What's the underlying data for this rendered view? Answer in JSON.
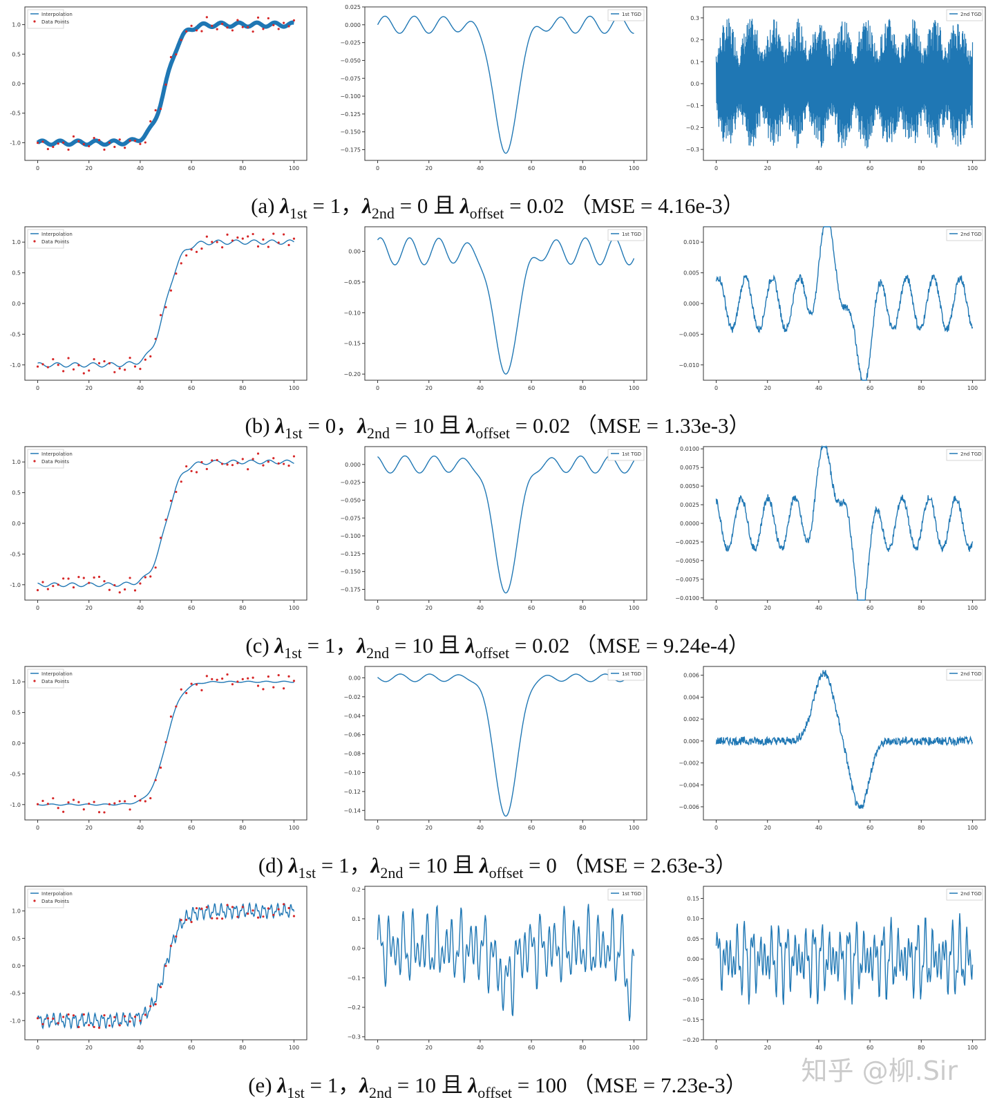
{
  "rows": [
    {
      "caption": {
        "letter": "(a) ",
        "l1_sub": "1st",
        "l1_val": " = 1，",
        "l2_sub": "2nd",
        "l2_val": " = 0 且 ",
        "l3_sub": "offset",
        "l3_val": " = 0.02",
        "mse": "（MSE = 4.16e-3）"
      },
      "charts": [
        {
          "type": "line",
          "role": "interpolation",
          "legend": [
            "Interpolation",
            "Data Points"
          ],
          "xlim": [
            -5,
            105
          ],
          "ylim": [
            -1.3,
            1.3
          ],
          "xticks": [
            "0",
            "20",
            "40",
            "60",
            "80",
            "100"
          ],
          "yticks": [
            "-1.0",
            "-0.5",
            "0.0",
            "0.5",
            "1.0"
          ],
          "ytick_values": [
            -1.0,
            -0.5,
            0.0,
            0.5,
            1.0
          ],
          "ripple": 0.035,
          "noisy": true
        },
        {
          "type": "line",
          "role": "tgd1",
          "legend": [
            "1st TGD"
          ],
          "xlim": [
            -5,
            105
          ],
          "ylim": [
            -0.19,
            0.025
          ],
          "xticks": [
            "0",
            "20",
            "40",
            "60",
            "80",
            "100"
          ],
          "yticks": [
            "0.025",
            "0.000",
            "−0.025",
            "−0.050",
            "−0.075",
            "−0.100",
            "−0.125",
            "−0.150",
            "−0.175"
          ],
          "ytick_values": [
            0.025,
            0.0,
            -0.025,
            -0.05,
            -0.075,
            -0.1,
            -0.125,
            -0.15,
            -0.175
          ],
          "dip": -0.18,
          "osc": 0.012
        },
        {
          "type": "line",
          "role": "tgd2",
          "legend": [
            "2nd TGD"
          ],
          "xlim": [
            -5,
            105
          ],
          "ylim": [
            -0.35,
            0.35
          ],
          "xticks": [
            "0",
            "20",
            "40",
            "60",
            "80",
            "100"
          ],
          "yticks": [
            "0.3",
            "0.2",
            "0.1",
            "0.0",
            "−0.1",
            "−0.2",
            "−0.3"
          ],
          "ytick_values": [
            0.3,
            0.2,
            0.1,
            0.0,
            -0.1,
            -0.2,
            -0.3
          ],
          "amp": 0.3,
          "dense": true
        }
      ]
    },
    {
      "caption": {
        "letter": "(b) ",
        "l1_sub": "1st",
        "l1_val": " = 0，",
        "l2_sub": "2nd",
        "l2_val": " = 10 且 ",
        "l3_sub": "offset",
        "l3_val": " = 0.02",
        "mse": "（MSE = 1.33e-3）"
      },
      "charts": [
        {
          "type": "line",
          "role": "interpolation",
          "legend": [
            "Interpolation",
            "Data Points"
          ],
          "xlim": [
            -5,
            105
          ],
          "ylim": [
            -1.25,
            1.25
          ],
          "xticks": [
            "0",
            "20",
            "40",
            "60",
            "80",
            "100"
          ],
          "yticks": [
            "-1.0",
            "-0.5",
            "0.0",
            "0.5",
            "1.0"
          ],
          "ytick_values": [
            -1.0,
            -0.5,
            0.0,
            0.5,
            1.0
          ],
          "ripple": 0.035,
          "noisy": false
        },
        {
          "type": "line",
          "role": "tgd1",
          "legend": [
            "1st TGD"
          ],
          "xlim": [
            -5,
            105
          ],
          "ylim": [
            -0.21,
            0.04
          ],
          "xticks": [
            "0",
            "20",
            "40",
            "60",
            "80",
            "100"
          ],
          "yticks": [
            "0.00",
            "−0.05",
            "−0.10",
            "−0.15",
            "−0.20"
          ],
          "ytick_values": [
            0.0,
            -0.05,
            -0.1,
            -0.15,
            -0.2
          ],
          "dip": -0.2,
          "osc": 0.022
        },
        {
          "type": "line",
          "role": "tgd2",
          "legend": [
            "2nd TGD"
          ],
          "xlim": [
            -5,
            105
          ],
          "ylim": [
            -0.0125,
            0.0125
          ],
          "xticks": [
            "0",
            "20",
            "40",
            "60",
            "80",
            "100"
          ],
          "yticks": [
            "0.010",
            "0.005",
            "0.000",
            "−0.005",
            "−0.010"
          ],
          "ytick_values": [
            0.01,
            0.005,
            0.0,
            -0.005,
            -0.01
          ],
          "amp": 0.012,
          "dense": false
        }
      ]
    },
    {
      "caption": {
        "letter": "(c) ",
        "l1_sub": "1st",
        "l1_val": " = 1，",
        "l2_sub": "2nd",
        "l2_val": " = 10 且 ",
        "l3_sub": "offset",
        "l3_val": " = 0.02",
        "mse": "（MSE = 9.24e-4）"
      },
      "charts": [
        {
          "type": "line",
          "role": "interpolation",
          "legend": [
            "Interpolation",
            "Data Points"
          ],
          "xlim": [
            -5,
            105
          ],
          "ylim": [
            -1.25,
            1.25
          ],
          "xticks": [
            "0",
            "20",
            "40",
            "60",
            "80",
            "100"
          ],
          "yticks": [
            "-1.0",
            "-0.5",
            "0.0",
            "0.5",
            "1.0"
          ],
          "ytick_values": [
            -1.0,
            -0.5,
            0.0,
            0.5,
            1.0
          ],
          "ripple": 0.03,
          "noisy": false
        },
        {
          "type": "line",
          "role": "tgd1",
          "legend": [
            "1st TGD"
          ],
          "xlim": [
            -5,
            105
          ],
          "ylim": [
            -0.19,
            0.025
          ],
          "xticks": [
            "0",
            "20",
            "40",
            "60",
            "80",
            "100"
          ],
          "yticks": [
            "0.000",
            "−0.025",
            "−0.050",
            "−0.075",
            "−0.100",
            "−0.125",
            "−0.150",
            "−0.175"
          ],
          "ytick_values": [
            0.0,
            -0.025,
            -0.05,
            -0.075,
            -0.1,
            -0.125,
            -0.15,
            -0.175
          ],
          "dip": -0.18,
          "osc": 0.012
        },
        {
          "type": "line",
          "role": "tgd2",
          "legend": [
            "2nd TGD"
          ],
          "xlim": [
            -5,
            105
          ],
          "ylim": [
            -0.0103,
            0.0103
          ],
          "xticks": [
            "0",
            "20",
            "40",
            "60",
            "80",
            "100"
          ],
          "yticks": [
            "0.0100",
            "0.0075",
            "0.0050",
            "0.0025",
            "0.0000",
            "−0.0025",
            "−0.0050",
            "−0.0075",
            "−0.0100"
          ],
          "ytick_values": [
            0.01,
            0.0075,
            0.005,
            0.0025,
            0.0,
            -0.0025,
            -0.005,
            -0.0075,
            -0.01
          ],
          "amp": 0.0098,
          "dense": false
        }
      ]
    },
    {
      "caption": {
        "letter": "(d) ",
        "l1_sub": "1st",
        "l1_val": " = 1，",
        "l2_sub": "2nd",
        "l2_val": " = 10 且 ",
        "l3_sub": "offset",
        "l3_val": " = 0",
        "mse": "（MSE = 2.63e-3）"
      },
      "charts": [
        {
          "type": "line",
          "role": "interpolation",
          "legend": [
            "Interpolation",
            "Data Points"
          ],
          "xlim": [
            -5,
            105
          ],
          "ylim": [
            -1.25,
            1.25
          ],
          "xticks": [
            "0",
            "20",
            "40",
            "60",
            "80",
            "100"
          ],
          "yticks": [
            "1.0",
            "0.5",
            "0.0",
            "-0.5",
            "-1.0"
          ],
          "ytick_values": [
            1.0,
            0.5,
            0.0,
            -0.5,
            -1.0
          ],
          "ripple": 0.01,
          "noisy": false
        },
        {
          "type": "line",
          "role": "tgd1",
          "legend": [
            "1st TGD"
          ],
          "xlim": [
            -5,
            105
          ],
          "ylim": [
            -0.15,
            0.012
          ],
          "xticks": [
            "0",
            "20",
            "40",
            "60",
            "80",
            "100"
          ],
          "yticks": [
            "0.00",
            "−0.02",
            "−0.04",
            "−0.06",
            "−0.08",
            "−0.10",
            "−0.12",
            "−0.14"
          ],
          "ytick_values": [
            0.0,
            -0.02,
            -0.04,
            -0.06,
            -0.08,
            -0.1,
            -0.12,
            -0.14
          ],
          "dip": -0.146,
          "osc": 0.004
        },
        {
          "type": "line",
          "role": "tgd2",
          "legend": [
            "2nd TGD"
          ],
          "xlim": [
            -5,
            105
          ],
          "ylim": [
            -0.0072,
            0.0068
          ],
          "xticks": [
            "0",
            "20",
            "40",
            "60",
            "80",
            "100"
          ],
          "yticks": [
            "0.006",
            "0.004",
            "0.002",
            "0.000",
            "−0.002",
            "−0.004",
            "−0.006"
          ],
          "ytick_values": [
            0.006,
            0.004,
            0.002,
            0.0,
            -0.002,
            -0.004,
            -0.006
          ],
          "amp": 0.0062,
          "dense": false,
          "smooth_tgd2": true
        }
      ]
    },
    {
      "caption": {
        "letter": "(e) ",
        "l1_sub": "1st",
        "l1_val": " = 1，",
        "l2_sub": "2nd",
        "l2_val": " = 10 且 ",
        "l3_sub": "offset",
        "l3_val": " = 100",
        "mse": "（MSE = 7.23e-3）"
      },
      "charts": [
        {
          "type": "line",
          "role": "interpolation",
          "legend": [
            "Interpolation",
            "Data Points"
          ],
          "xlim": [
            -5,
            105
          ],
          "ylim": [
            -1.35,
            1.45
          ],
          "xticks": [
            "0",
            "20",
            "40",
            "60",
            "80",
            "100"
          ],
          "yticks": [
            "1.0",
            "0.5",
            "0.0",
            "-0.5",
            "-1.0"
          ],
          "ytick_values": [
            1.0,
            0.5,
            0.0,
            -0.5,
            -1.0
          ],
          "ripple": 0.0,
          "noisy": false,
          "pass_through": true
        },
        {
          "type": "line",
          "role": "tgd1",
          "legend": [
            "1st TGD"
          ],
          "xlim": [
            -5,
            105
          ],
          "ylim": [
            -0.31,
            0.21
          ],
          "xticks": [
            "0",
            "20",
            "40",
            "60",
            "80",
            "100"
          ],
          "yticks": [
            "0.2",
            "0.1",
            "0.0",
            "−0.1",
            "−0.2",
            "−0.3"
          ],
          "ytick_values": [
            0.2,
            0.1,
            0.0,
            -0.1,
            -0.2,
            -0.3
          ],
          "amp": 0.17,
          "jagged": true
        },
        {
          "type": "line",
          "role": "tgd2",
          "legend": [
            "2nd TGD"
          ],
          "xlim": [
            -5,
            105
          ],
          "ylim": [
            -0.2,
            0.18
          ],
          "xticks": [
            "0",
            "20",
            "40",
            "60",
            "80",
            "100"
          ],
          "yticks": [
            "0.15",
            "0.10",
            "0.05",
            "0.00",
            "−0.05",
            "−0.10",
            "−0.15",
            "−0.20"
          ],
          "ytick_values": [
            0.15,
            0.1,
            0.05,
            0.0,
            -0.05,
            -0.1,
            -0.15,
            -0.2
          ],
          "amp": 0.13,
          "jagged": true
        }
      ]
    }
  ],
  "colors": {
    "line": "#1f77b4",
    "points": "#d62728",
    "axes": "#333333"
  },
  "watermark": "知乎 @柳.Sir"
}
